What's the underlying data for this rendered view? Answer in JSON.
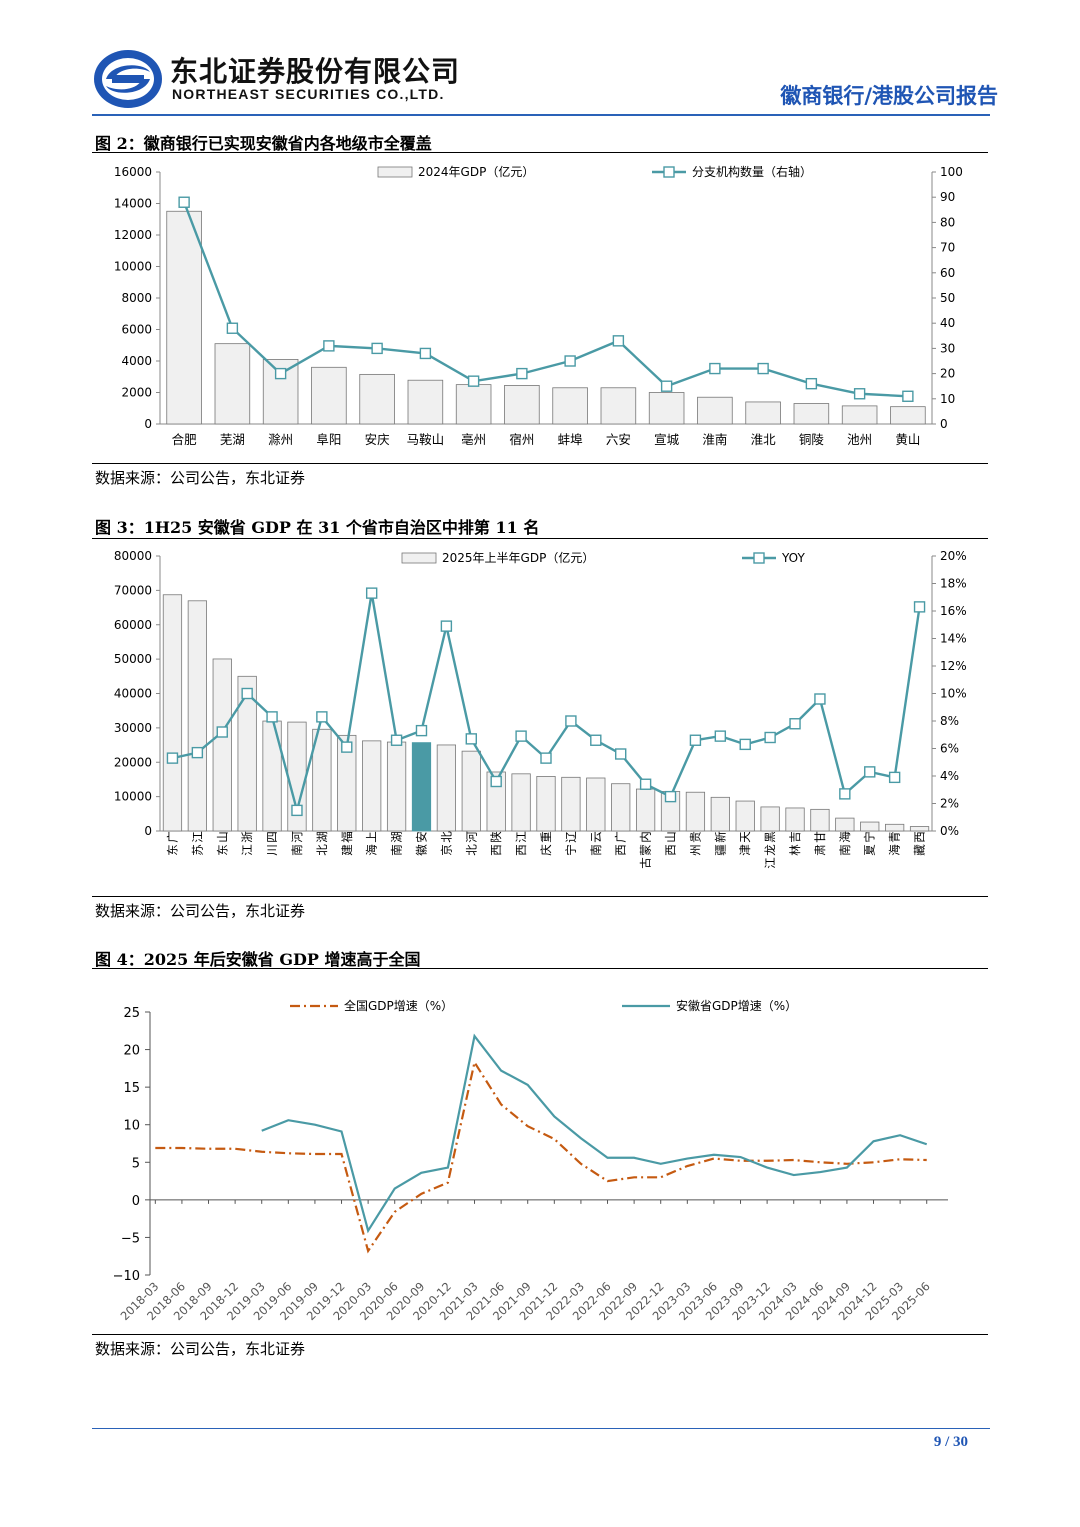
{
  "header": {
    "company_cn": "东北证券股份有限公司",
    "company_en": "NORTHEAST SECURITIES CO.,LTD.",
    "report_type": "徽商银行/港股公司报告",
    "brand_color": "#1f55b4"
  },
  "figures": [
    {
      "title": "图 2：徽商银行已实现安徽省内各地级市全覆盖",
      "source": "数据来源：公司公告，东北证券"
    },
    {
      "title": "图 3：1H25 安徽省 GDP 在 31 个省市自治区中排第 11 名",
      "source": "数据来源：公司公告，东北证券"
    },
    {
      "title": "图 4：2025 年后安徽省 GDP 增速高于全国",
      "source": "数据来源：公司公告，东北证券"
    }
  ],
  "footer": {
    "page": "9 / 30"
  },
  "chart_data": [
    {
      "type": "bar+line",
      "categories": [
        "合肥",
        "芜湖",
        "滁州",
        "阜阳",
        "安庆",
        "马鞍山",
        "亳州",
        "宿州",
        "蚌埠",
        "六安",
        "宣城",
        "淮南",
        "淮北",
        "铜陵",
        "池州",
        "黄山"
      ],
      "series": [
        {
          "name": "2024年GDP（亿元）",
          "kind": "bar",
          "axis": "left",
          "values": [
            13507,
            5100,
            4100,
            3600,
            3150,
            2780,
            2500,
            2450,
            2300,
            2300,
            2000,
            1700,
            1400,
            1300,
            1150,
            1100
          ]
        },
        {
          "name": "分支机构数量（右轴）",
          "kind": "line",
          "axis": "right",
          "values": [
            88,
            38,
            20,
            31,
            30,
            28,
            17,
            20,
            25,
            33,
            15,
            22,
            22,
            16,
            12,
            11
          ]
        }
      ],
      "y_left": {
        "min": 0,
        "max": 16000,
        "ticks": [
          "0",
          "2000",
          "4000",
          "6000",
          "8000",
          "10000",
          "12000",
          "14000",
          "16000"
        ]
      },
      "y_right": {
        "min": 0,
        "max": 100,
        "ticks": [
          "0",
          "10",
          "20",
          "30",
          "40",
          "50",
          "60",
          "70",
          "80",
          "90",
          "100"
        ]
      },
      "bar_color": "#f0f0f0",
      "line_color": "#4a9aa5"
    },
    {
      "type": "bar+line",
      "categories": [
        "广东",
        "江苏",
        "山东",
        "浙江",
        "四川",
        "河南",
        "湖北",
        "福建",
        "上海",
        "湖南",
        "安徽",
        "北京",
        "河北",
        "陕西",
        "江西",
        "重庆",
        "辽宁",
        "云南",
        "广西",
        "内蒙古",
        "山西",
        "贵州",
        "新疆",
        "天津",
        "黑龙江",
        "吉林",
        "甘肃",
        "海南",
        "宁夏",
        "青海",
        "西藏"
      ],
      "highlight": "安徽",
      "series": [
        {
          "name": "2025年上半年GDP（亿元）",
          "kind": "bar",
          "axis": "left",
          "values": [
            68725,
            66967,
            50046,
            45004,
            31983,
            31683,
            29594,
            27826,
            26222,
            25874,
            25709,
            25030,
            23225,
            17167,
            16631,
            15877,
            15622,
            15417,
            13754,
            12200,
            11500,
            11281,
            9800,
            8711,
            7000,
            6700,
            6300,
            3750,
            2600,
            1950,
            1300
          ]
        },
        {
          "name": "YOY",
          "kind": "line",
          "axis": "right",
          "values": [
            5.3,
            5.7,
            7.2,
            10.0,
            8.3,
            1.5,
            8.3,
            6.1,
            17.3,
            6.6,
            7.3,
            14.9,
            6.7,
            3.6,
            6.9,
            5.3,
            8.0,
            6.6,
            5.6,
            3.4,
            2.5,
            6.6,
            6.9,
            6.3,
            6.8,
            7.8,
            9.6,
            2.7,
            4.3,
            3.9,
            16.3
          ]
        }
      ],
      "y_left": {
        "min": 0,
        "max": 80000,
        "ticks": [
          "0",
          "10000",
          "20000",
          "30000",
          "40000",
          "50000",
          "60000",
          "70000",
          "80000"
        ]
      },
      "y_right": {
        "min": 0,
        "max": 20,
        "ticks": [
          "0%",
          "2%",
          "4%",
          "6%",
          "8%",
          "10%",
          "12%",
          "14%",
          "16%",
          "18%",
          "20%"
        ]
      },
      "bar_color": "#f0f0f0",
      "highlight_color": "#4a9aa5",
      "line_color": "#4a9aa5"
    },
    {
      "type": "line",
      "x": [
        "2018-03",
        "2018-06",
        "2018-09",
        "2018-12",
        "2019-03",
        "2019-06",
        "2019-09",
        "2019-12",
        "2020-03",
        "2020-06",
        "2020-09",
        "2020-12",
        "2021-03",
        "2021-06",
        "2021-09",
        "2021-12",
        "2022-03",
        "2022-06",
        "2022-09",
        "2022-12",
        "2023-03",
        "2023-06",
        "2023-09",
        "2023-12",
        "2024-03",
        "2024-06",
        "2024-09",
        "2024-12",
        "2025-03",
        "2025-06"
      ],
      "series": [
        {
          "name": "全国GDP增速（%）",
          "style": "dashdot",
          "color": "#c55a11",
          "values": [
            6.9,
            6.9,
            6.8,
            6.8,
            6.4,
            6.2,
            6.1,
            6.1,
            -6.8,
            -1.6,
            0.8,
            2.3,
            18.3,
            12.7,
            9.8,
            8.1,
            4.8,
            2.5,
            3.0,
            3.0,
            4.5,
            5.5,
            5.2,
            5.2,
            5.3,
            5.0,
            4.8,
            5.0,
            5.4,
            5.3
          ]
        },
        {
          "name": "安徽省GDP增速（%）",
          "style": "solid",
          "color": "#4a9aa5",
          "values": [
            null,
            null,
            null,
            null,
            9.2,
            10.6,
            10.0,
            9.1,
            -4.1,
            1.5,
            3.6,
            4.3,
            21.8,
            17.2,
            15.3,
            11.1,
            8.2,
            5.6,
            5.6,
            4.8,
            5.5,
            6.0,
            5.7,
            4.3,
            3.3,
            3.7,
            4.3,
            7.8,
            8.6,
            7.4
          ]
        }
      ],
      "y": {
        "min": -10,
        "max": 25,
        "ticks": [
          "−10",
          "−5",
          "0",
          "5",
          "10",
          "15",
          "20",
          "25"
        ]
      }
    }
  ]
}
